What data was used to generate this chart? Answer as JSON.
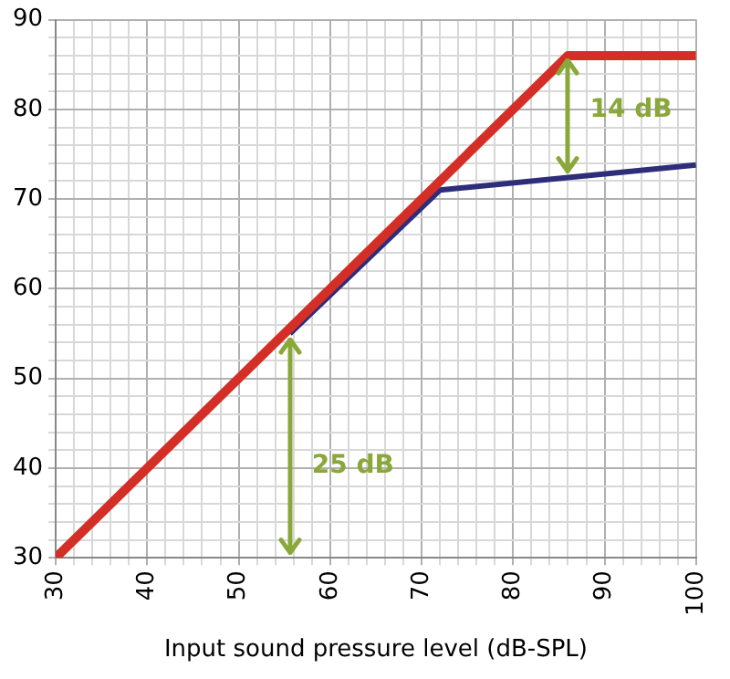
{
  "chart_data": {
    "type": "line",
    "xlabel": "Input sound pressure level (dB-SPL)",
    "series": [
      {
        "color": "#d42f27",
        "x": [
          30,
          86,
          100
        ],
        "values": [
          30,
          86,
          86
        ]
      },
      {
        "color": "#2d2d7a",
        "x": [
          55.6,
          72,
          100
        ],
        "values": [
          55,
          71,
          73.8
        ]
      }
    ],
    "xlim": [
      30,
      100
    ],
    "ylim": [
      30,
      90
    ],
    "xticks": [
      30,
      {
        "value": 32,
        "label": null
      },
      {
        "value": 34,
        "label": null
      },
      {
        "value": 36,
        "label": null
      },
      {
        "value": 38,
        "label": null
      },
      40,
      {
        "value": 42,
        "label": null
      },
      {
        "value": 44,
        "label": null
      },
      {
        "value": 46,
        "label": null
      },
      {
        "value": 48,
        "label": null
      },
      50,
      {
        "value": 52,
        "label": null
      },
      {
        "value": 54,
        "label": null
      },
      {
        "value": 56,
        "label": null
      },
      {
        "value": 58,
        "label": null
      },
      60,
      {
        "value": 62,
        "label": null
      },
      {
        "value": 64,
        "label": null
      },
      {
        "value": 66,
        "label": null
      },
      {
        "value": 68,
        "label": null
      },
      70,
      {
        "value": 72,
        "label": null
      },
      {
        "value": 74,
        "label": null
      },
      {
        "value": 76,
        "label": null
      },
      {
        "value": 78,
        "label": null
      },
      80,
      {
        "value": 82,
        "label": null
      },
      {
        "value": 84,
        "label": null
      },
      {
        "value": 86,
        "label": null
      },
      {
        "value": 88,
        "label": null
      },
      90,
      {
        "value": 92,
        "label": null
      },
      {
        "value": 94,
        "label": null
      },
      {
        "value": 96,
        "label": null
      },
      {
        "value": 98,
        "label": null
      },
      100
    ],
    "yticks": [
      30,
      {
        "value": 32,
        "label": null
      },
      {
        "value": 34,
        "label": null
      },
      {
        "value": 36,
        "label": null
      },
      {
        "value": 38,
        "label": null
      },
      40,
      {
        "value": 42,
        "label": null
      },
      {
        "value": 44,
        "label": null
      },
      {
        "value": 46,
        "label": null
      },
      {
        "value": 48,
        "label": null
      },
      50,
      {
        "value": 52,
        "label": null
      },
      {
        "value": 54,
        "label": null
      },
      {
        "value": 56,
        "label": null
      },
      {
        "value": 58,
        "label": null
      },
      60,
      {
        "value": 62,
        "label": null
      },
      {
        "value": 64,
        "label": null
      },
      {
        "value": 66,
        "label": null
      },
      {
        "value": 68,
        "label": null
      },
      70,
      {
        "value": 72,
        "label": null
      },
      {
        "value": 74,
        "label": null
      },
      {
        "value": 76,
        "label": null
      },
      {
        "value": 78,
        "label": null
      },
      80,
      {
        "value": 82,
        "label": null
      },
      {
        "value": 84,
        "label": null
      },
      {
        "value": 86,
        "label": null
      },
      {
        "value": 88,
        "label": null
      },
      90
    ],
    "grid": true,
    "legend": false,
    "marker": "none",
    "line_style": "solid",
    "annotations": [
      "25 dB",
      "14 dB"
    ]
  }
}
